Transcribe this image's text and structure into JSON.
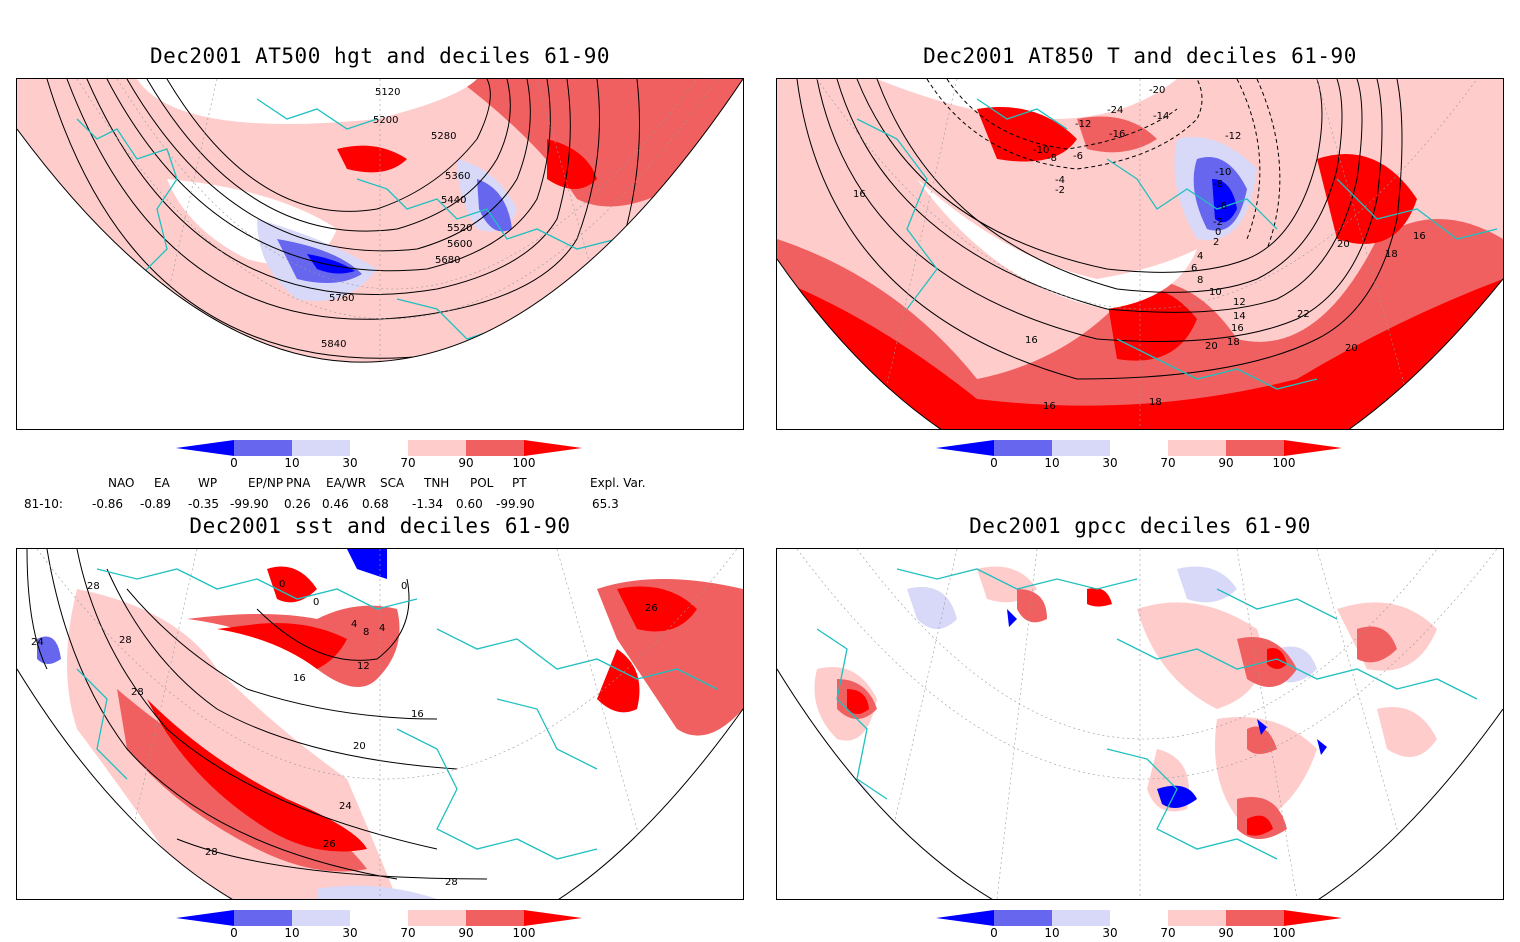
{
  "panels": [
    {
      "title": "Dec2001 AT500 hgt and deciles 61-90",
      "contour_labels": [
        "5120",
        "5200",
        "5280",
        "5360",
        "5440",
        "5520",
        "5600",
        "5680",
        "5760",
        "5840"
      ]
    },
    {
      "title": "Dec2001 AT850 T and deciles 61-90",
      "contour_labels": [
        "-20",
        "-24",
        "-12",
        "-16",
        "-14",
        "-10",
        "-8",
        "-6",
        "-4",
        "-2",
        "-12",
        "-10",
        "-8",
        "-6",
        "-2",
        "0",
        "2",
        "4",
        "6",
        "8",
        "10",
        "12",
        "14",
        "16",
        "18",
        "20",
        "22",
        "16",
        "18",
        "20",
        "16",
        "20",
        "18",
        "16",
        "16"
      ]
    },
    {
      "title": "Dec2001 sst and deciles 61-90",
      "contour_labels": [
        "28",
        "24",
        "28",
        "28",
        "0",
        "0",
        "0",
        "4",
        "8",
        "4",
        "12",
        "16",
        "16",
        "20",
        "24",
        "26",
        "28",
        "28",
        "26"
      ]
    },
    {
      "title": "Dec2001 gpcc deciles 61-90"
    }
  ],
  "colorbar": {
    "ticks": [
      "0",
      "10",
      "30",
      "70",
      "90",
      "100"
    ],
    "colors": [
      "#0000ff",
      "#6666ee",
      "#d8d8f8",
      "#ffffff",
      "#ffcccc",
      "#f06060",
      "#ff0000"
    ]
  },
  "indices": {
    "row_label": "81-10:",
    "headers": [
      "NAO",
      "EA",
      "WP",
      "EP/NP",
      "PNA",
      "EA/WR",
      "SCA",
      "TNH",
      "POL",
      "PT",
      "Expl. Var."
    ],
    "values": [
      "-0.86",
      "-0.89",
      "-0.35",
      "-99.90",
      "0.26",
      "0.46",
      "0.68",
      "-1.34",
      "0.60",
      "-99.90",
      "65.3"
    ]
  }
}
